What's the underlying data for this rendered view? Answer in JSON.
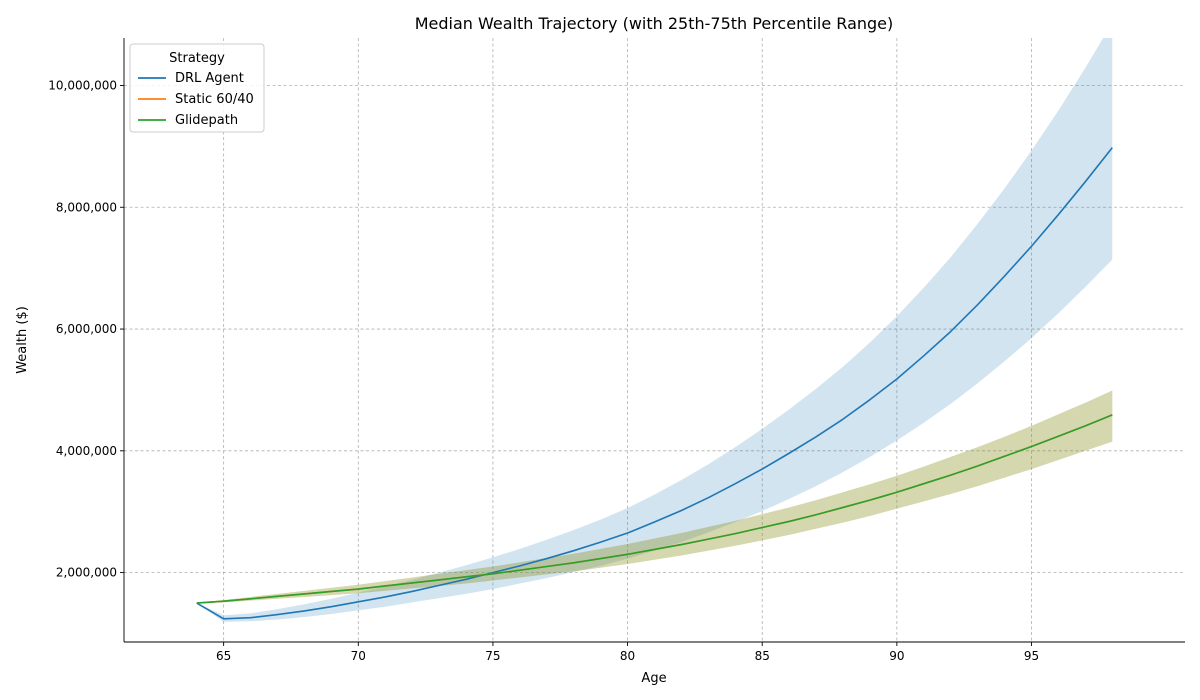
{
  "chart_data": {
    "type": "line",
    "title": "Median Wealth Trajectory (with 25th-75th Percentile Range)",
    "xlabel": "Age",
    "ylabel": "Wealth ($)",
    "xlim": [
      61.3,
      100.7
    ],
    "ylim": [
      860000,
      10780000
    ],
    "xticks": [
      65,
      70,
      75,
      80,
      85,
      90,
      95
    ],
    "yticks": [
      2000000,
      4000000,
      6000000,
      8000000,
      10000000
    ],
    "ytick_labels": [
      "2,000,000",
      "4,000,000",
      "6,000,000",
      "8,000,000",
      "10,000,000"
    ],
    "grid": true,
    "legend": {
      "title": "Strategy",
      "placement": "top-left"
    },
    "x": [
      64,
      65,
      66,
      67,
      68,
      69,
      70,
      71,
      72,
      73,
      74,
      75,
      76,
      77,
      78,
      79,
      80,
      81,
      82,
      83,
      84,
      85,
      86,
      87,
      88,
      89,
      90,
      91,
      92,
      93,
      94,
      95,
      96,
      97,
      98
    ],
    "series": [
      {
        "name": "DRL Agent",
        "color": "#1f77b4",
        "band_color": "#1f77b4",
        "median": [
          1500000,
          1240000,
          1260000,
          1310000,
          1370000,
          1440000,
          1520000,
          1600000,
          1690000,
          1790000,
          1890000,
          2000000,
          2110000,
          2230000,
          2360000,
          2500000,
          2650000,
          2830000,
          3020000,
          3230000,
          3460000,
          3700000,
          3960000,
          4230000,
          4520000,
          4840000,
          5180000,
          5560000,
          5960000,
          6400000,
          6870000,
          7360000,
          7880000,
          8420000,
          8980000
        ],
        "q25": [
          1500000,
          1190000,
          1200000,
          1230000,
          1270000,
          1320000,
          1380000,
          1440000,
          1510000,
          1580000,
          1650000,
          1730000,
          1820000,
          1910000,
          2010000,
          2110000,
          2230000,
          2360000,
          2500000,
          2660000,
          2830000,
          3010000,
          3210000,
          3420000,
          3650000,
          3900000,
          4170000,
          4460000,
          4770000,
          5110000,
          5470000,
          5850000,
          6260000,
          6690000,
          7140000
        ],
        "q75": [
          1500000,
          1300000,
          1330000,
          1400000,
          1480000,
          1570000,
          1670000,
          1770000,
          1880000,
          2000000,
          2120000,
          2250000,
          2390000,
          2540000,
          2700000,
          2870000,
          3060000,
          3280000,
          3520000,
          3780000,
          4060000,
          4360000,
          4680000,
          5020000,
          5380000,
          5780000,
          6210000,
          6680000,
          7180000,
          7730000,
          8310000,
          8930000,
          9590000,
          10290000,
          11030000
        ]
      },
      {
        "name": "Static 60/40",
        "color": "#ff7f0e",
        "band_color": "#ff7f0e",
        "median": [
          1500000,
          1530000,
          1570000,
          1610000,
          1650000,
          1690000,
          1730000,
          1780000,
          1830000,
          1880000,
          1930000,
          1980000,
          2040000,
          2100000,
          2160000,
          2230000,
          2300000,
          2380000,
          2460000,
          2550000,
          2640000,
          2740000,
          2840000,
          2950000,
          3070000,
          3190000,
          3320000,
          3460000,
          3600000,
          3750000,
          3910000,
          4070000,
          4240000,
          4410000,
          4590000
        ],
        "q25": [
          1500000,
          1510000,
          1540000,
          1570000,
          1600000,
          1630000,
          1660000,
          1700000,
          1740000,
          1780000,
          1820000,
          1870000,
          1920000,
          1970000,
          2020000,
          2080000,
          2140000,
          2210000,
          2280000,
          2360000,
          2440000,
          2530000,
          2620000,
          2720000,
          2820000,
          2930000,
          3050000,
          3170000,
          3290000,
          3420000,
          3560000,
          3700000,
          3850000,
          4000000,
          4150000
        ],
        "q75": [
          1500000,
          1550000,
          1600000,
          1650000,
          1700000,
          1750000,
          1800000,
          1860000,
          1920000,
          1980000,
          2040000,
          2100000,
          2170000,
          2240000,
          2310000,
          2390000,
          2470000,
          2560000,
          2650000,
          2750000,
          2850000,
          2960000,
          3070000,
          3190000,
          3320000,
          3450000,
          3590000,
          3740000,
          3900000,
          4060000,
          4230000,
          4410000,
          4600000,
          4790000,
          4990000
        ]
      },
      {
        "name": "Glidepath",
        "color": "#2ca02c",
        "band_color": "#2ca02c",
        "median": [
          1500000,
          1530000,
          1570000,
          1610000,
          1650000,
          1690000,
          1730000,
          1780000,
          1830000,
          1880000,
          1930000,
          1980000,
          2040000,
          2100000,
          2160000,
          2230000,
          2300000,
          2380000,
          2460000,
          2550000,
          2640000,
          2740000,
          2840000,
          2950000,
          3070000,
          3190000,
          3320000,
          3460000,
          3600000,
          3750000,
          3910000,
          4070000,
          4240000,
          4410000,
          4590000
        ],
        "q25": [
          1500000,
          1510000,
          1540000,
          1570000,
          1600000,
          1630000,
          1660000,
          1700000,
          1740000,
          1780000,
          1820000,
          1870000,
          1920000,
          1970000,
          2020000,
          2080000,
          2140000,
          2210000,
          2280000,
          2360000,
          2440000,
          2530000,
          2620000,
          2720000,
          2820000,
          2930000,
          3050000,
          3170000,
          3290000,
          3420000,
          3560000,
          3700000,
          3850000,
          4000000,
          4150000
        ],
        "q75": [
          1500000,
          1550000,
          1600000,
          1650000,
          1700000,
          1750000,
          1800000,
          1860000,
          1920000,
          1980000,
          2040000,
          2100000,
          2170000,
          2240000,
          2310000,
          2390000,
          2470000,
          2560000,
          2650000,
          2750000,
          2850000,
          2960000,
          3070000,
          3190000,
          3320000,
          3450000,
          3590000,
          3740000,
          3900000,
          4060000,
          4230000,
          4410000,
          4600000,
          4790000,
          4990000
        ]
      }
    ]
  }
}
